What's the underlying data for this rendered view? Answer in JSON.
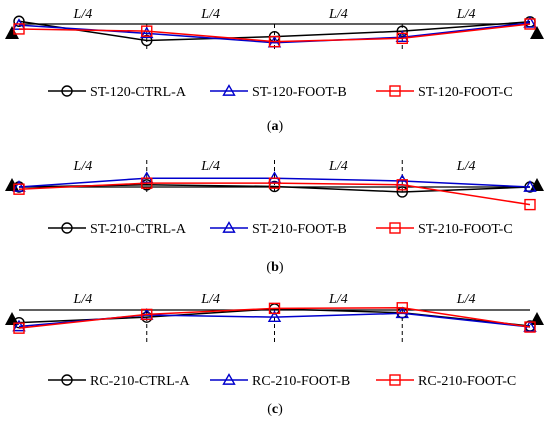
{
  "chart_data": [
    {
      "type": "line",
      "panel_label": "(a)",
      "panel_letter": "a",
      "segment_labels": [
        "L/4",
        "L/4",
        "L/4",
        "L/4"
      ],
      "x": [
        0,
        0.25,
        0.5,
        0.75,
        1
      ],
      "series": [
        {
          "name": "ST-120-CTRL-A",
          "color": "#000000",
          "marker": "circle",
          "values": [
            0.5,
            -3.0,
            -2.3,
            -1.3,
            0.4
          ]
        },
        {
          "name": "ST-120-FOOT-B",
          "color": "#0000cc",
          "marker": "triangle",
          "values": [
            -0.2,
            -1.7,
            -3.4,
            -2.4,
            0.2
          ]
        },
        {
          "name": "ST-120-FOOT-C",
          "color": "#ff0000",
          "marker": "square",
          "values": [
            -0.9,
            -1.3,
            -3.2,
            -2.6,
            0.0
          ]
        }
      ]
    },
    {
      "type": "line",
      "panel_label": "(b)",
      "panel_letter": "b",
      "segment_labels": [
        "L/4",
        "L/4",
        "L/4",
        "L/4"
      ],
      "x": [
        0,
        0.25,
        0.5,
        0.75,
        1
      ],
      "series": [
        {
          "name": "ST-210-CTRL-A",
          "color": "#000000",
          "marker": "circle",
          "values": [
            0.0,
            0.4,
            0.1,
            -0.9,
            0.0
          ]
        },
        {
          "name": "ST-210-FOOT-B",
          "color": "#0000cc",
          "marker": "triangle",
          "values": [
            0.0,
            1.6,
            1.6,
            1.1,
            0.0
          ]
        },
        {
          "name": "ST-210-FOOT-C",
          "color": "#ff0000",
          "marker": "square",
          "values": [
            -0.4,
            0.7,
            0.7,
            0.4,
            -3.2
          ]
        }
      ]
    },
    {
      "type": "line",
      "panel_label": "(c)",
      "panel_letter": "c",
      "segment_labels": [
        "L/4",
        "L/4",
        "L/4",
        "L/4"
      ],
      "x": [
        0,
        0.25,
        0.5,
        0.75,
        1
      ],
      "series": [
        {
          "name": "RC-210-CTRL-A",
          "color": "#000000",
          "marker": "circle",
          "values": [
            -2.3,
            -1.3,
            0.2,
            -0.5,
            -2.9
          ]
        },
        {
          "name": "RC-210-FOOT-B",
          "color": "#0000cc",
          "marker": "triangle",
          "values": [
            -3.0,
            -0.9,
            -1.3,
            -0.6,
            -3.1
          ]
        },
        {
          "name": "RC-210-FOOT-C",
          "color": "#ff0000",
          "marker": "square",
          "values": [
            -3.3,
            -0.8,
            0.3,
            0.4,
            -3.1
          ]
        }
      ]
    }
  ]
}
